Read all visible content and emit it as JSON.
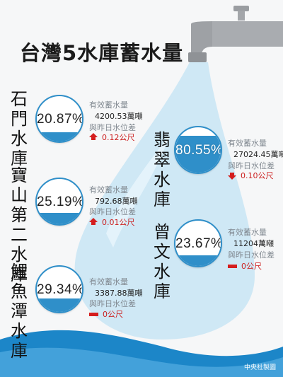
{
  "title": "台灣5水庫蓄水量",
  "labels": {
    "storage": "有效蓄水量",
    "diff": "與昨日水位差"
  },
  "reservoirs": [
    {
      "name": "石門水庫",
      "percent_text": "20.87%",
      "percent": 20.87,
      "storage": "4200.53萬噸",
      "change": "0.12公尺",
      "direction": "up"
    },
    {
      "name": "寶山第二水庫",
      "percent_text": "25.19%",
      "percent": 25.19,
      "storage": "792.68萬噸",
      "change": "0.01公尺",
      "direction": "up"
    },
    {
      "name": "鯉魚潭水庫",
      "percent_text": "29.34%",
      "percent": 29.34,
      "storage": "3387.88萬噸",
      "change": "0公尺",
      "direction": "flat"
    },
    {
      "name": "翡翠水庫",
      "percent_text": "80.55%",
      "percent": 80.55,
      "storage": "27024.45萬噸",
      "change": "0.10公尺",
      "direction": "down"
    },
    {
      "name": "曾文水庫",
      "percent_text": "23.67%",
      "percent": 23.67,
      "storage": "11204萬噸",
      "change": "0公尺",
      "direction": "flat"
    }
  ],
  "credit": "中央社製圖",
  "colors": {
    "water": "#2f8fc9",
    "drop": "#cfe8f5",
    "wave": "#1c86c8",
    "change": "#d51e1e",
    "faucet": "#9fa2a6"
  }
}
